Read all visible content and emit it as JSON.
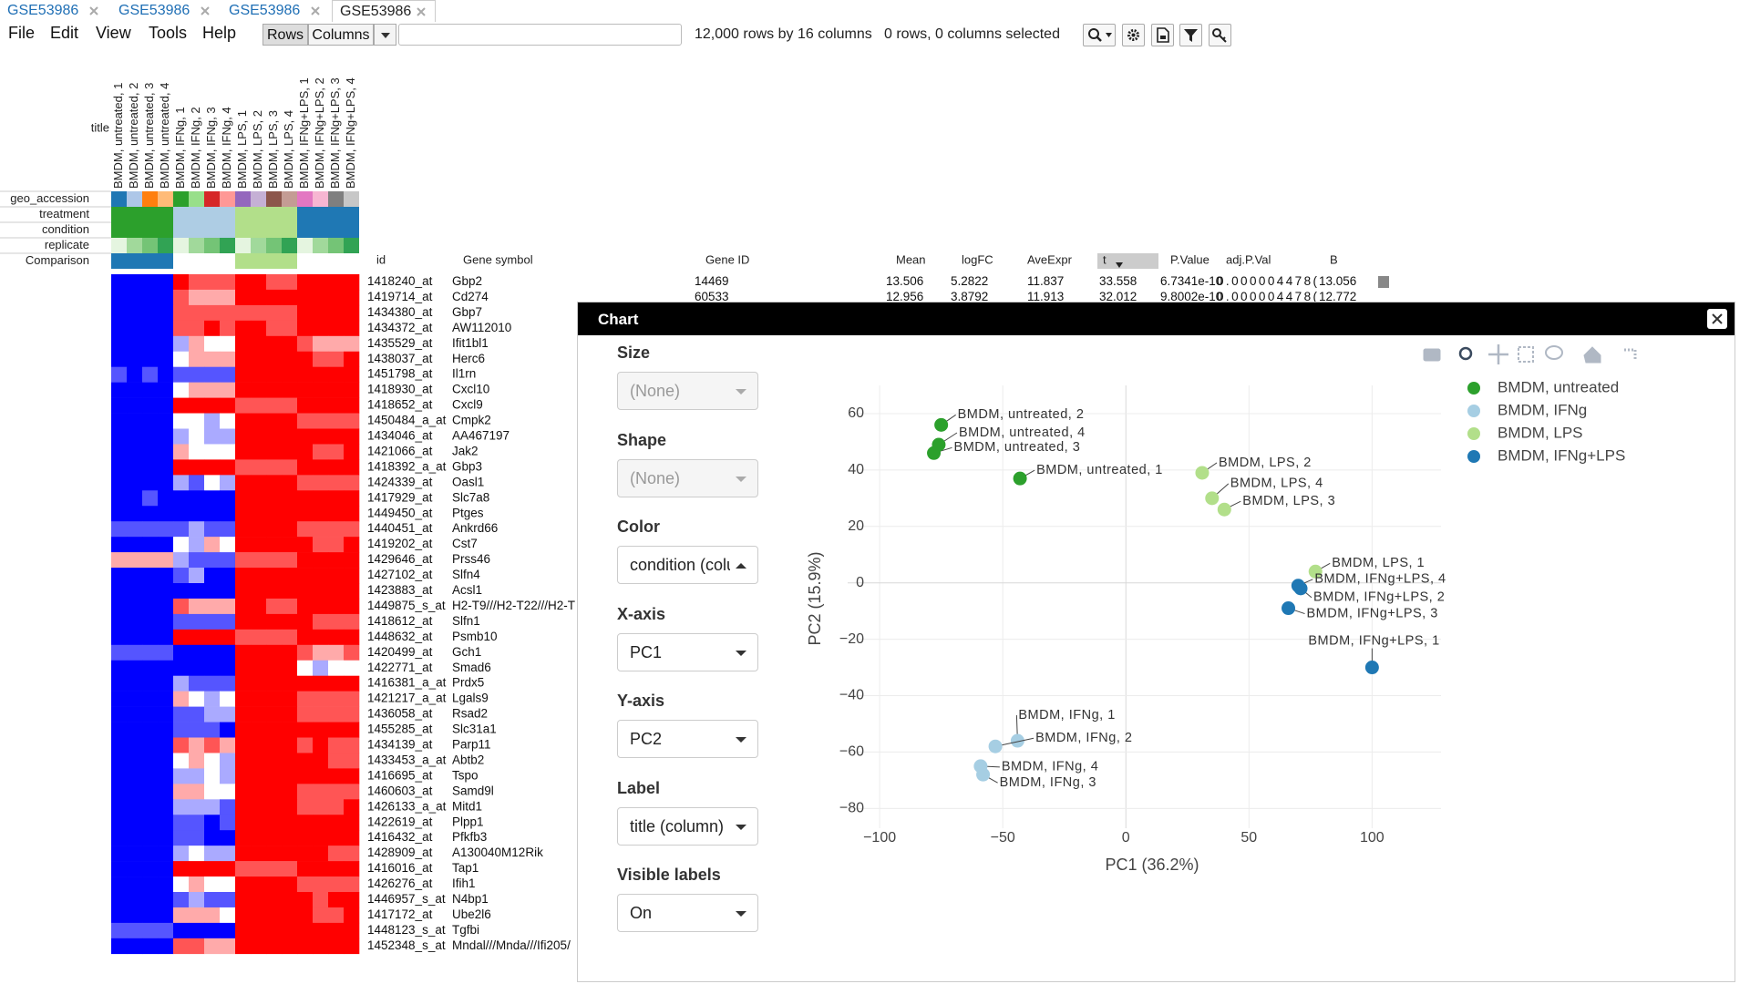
{
  "tabs": [
    "GSE53986",
    "GSE53986",
    "GSE53986",
    "GSE53986"
  ],
  "menu": [
    "File",
    "Edit",
    "View",
    "Tools",
    "Help"
  ],
  "toolbar": {
    "rows_button": "Rows",
    "columns_button": "Columns",
    "status": "12,000 rows by 16 columns",
    "selection": "0 rows, 0 columns selected"
  },
  "heatmap": {
    "title_label": "title",
    "column_titles": [
      "BMDM, untreated, 1",
      "BMDM, untreated, 2",
      "BMDM, untreated, 3",
      "BMDM, untreated, 4",
      "BMDM, IFNg, 1",
      "BMDM, IFNg, 2",
      "BMDM, IFNg, 3",
      "BMDM, IFNg, 4",
      "BMDM, LPS, 1",
      "BMDM, LPS, 2",
      "BMDM, LPS, 3",
      "BMDM, LPS, 4",
      "BMDM, IFNg+LPS, 1",
      "BMDM, IFNg+LPS, 2",
      "BMDM, IFNg+LPS, 3",
      "BMDM, IFNg+LPS, 4"
    ],
    "annotations": [
      {
        "name": "geo_accession",
        "colors": [
          "#1f77b4",
          "#aec7e8",
          "#ff7f0e",
          "#ffbb78",
          "#2ca02c",
          "#98df8a",
          "#d62728",
          "#ff9896",
          "#9467bd",
          "#c5b0d5",
          "#8c564b",
          "#c49c94",
          "#e377c2",
          "#f7b6d2",
          "#7f7f7f",
          "#c7c7c7"
        ]
      },
      {
        "name": "treatment",
        "colors": [
          "#2ca02c",
          "#2ca02c",
          "#2ca02c",
          "#2ca02c",
          "#aecde4",
          "#aecde4",
          "#aecde4",
          "#aecde4",
          "#b2df8a",
          "#b2df8a",
          "#b2df8a",
          "#b2df8a",
          "#1f78b4",
          "#1f78b4",
          "#1f78b4",
          "#1f78b4"
        ]
      },
      {
        "name": "condition",
        "colors": [
          "#2ca02c",
          "#2ca02c",
          "#2ca02c",
          "#2ca02c",
          "#aecde4",
          "#aecde4",
          "#aecde4",
          "#aecde4",
          "#b2df8a",
          "#b2df8a",
          "#b2df8a",
          "#b2df8a",
          "#1f78b4",
          "#1f78b4",
          "#1f78b4",
          "#1f78b4"
        ]
      },
      {
        "name": "replicate",
        "colors": [
          "#e5f5e0",
          "#a1d99b",
          "#74c476",
          "#31a354",
          "#e5f5e0",
          "#a1d99b",
          "#74c476",
          "#31a354",
          "#e5f5e0",
          "#a1d99b",
          "#74c476",
          "#31a354",
          "#e5f5e0",
          "#a1d99b",
          "#74c476",
          "#31a354"
        ]
      },
      {
        "name": "Comparison",
        "colors": [
          "#1f78b4",
          "#1f78b4",
          "#1f78b4",
          "#1f78b4",
          "#ffffff",
          "#ffffff",
          "#ffffff",
          "#ffffff",
          "#b2df8a",
          "#b2df8a",
          "#b2df8a",
          "#b2df8a",
          "#ffffff",
          "#ffffff",
          "#ffffff",
          "#ffffff"
        ]
      }
    ],
    "values": [
      [
        -3,
        -3,
        -3,
        -3,
        3,
        2,
        2,
        2,
        3,
        3,
        2,
        2,
        3,
        3,
        3,
        3
      ],
      [
        -3,
        -3,
        -3,
        -3,
        2,
        1,
        1,
        1,
        3,
        3,
        3,
        3,
        3,
        3,
        3,
        3
      ],
      [
        -3,
        -3,
        -3,
        -3,
        2,
        2,
        2,
        2,
        2,
        2,
        2,
        2,
        3,
        3,
        3,
        3
      ],
      [
        -3,
        -3,
        -3,
        -3,
        2,
        2,
        3,
        2,
        3,
        3,
        2,
        2,
        3,
        3,
        3,
        3
      ],
      [
        -3,
        -3,
        -3,
        -3,
        -1,
        1,
        0,
        0,
        3,
        3,
        3,
        3,
        2,
        1,
        1,
        1
      ],
      [
        -3,
        -3,
        -3,
        -3,
        0,
        1,
        1,
        1,
        3,
        3,
        3,
        3,
        3,
        2,
        2,
        3
      ],
      [
        -2,
        -3,
        -2,
        -3,
        -2,
        -2,
        -2,
        -2,
        3,
        3,
        3,
        3,
        3,
        3,
        3,
        3
      ],
      [
        -3,
        -3,
        -3,
        -3,
        0,
        1,
        1,
        1,
        3,
        3,
        3,
        3,
        3,
        3,
        3,
        3
      ],
      [
        -3,
        -3,
        -3,
        -3,
        3,
        3,
        3,
        3,
        2,
        2,
        2,
        2,
        3,
        3,
        3,
        3
      ],
      [
        -3,
        -3,
        -3,
        -3,
        0,
        0,
        -1,
        0,
        3,
        3,
        3,
        3,
        2,
        2,
        2,
        2
      ],
      [
        -3,
        -3,
        -3,
        -3,
        -1,
        0,
        -1,
        -1,
        3,
        3,
        3,
        3,
        3,
        3,
        3,
        3
      ],
      [
        -3,
        -3,
        -3,
        -3,
        1,
        0,
        0,
        0,
        3,
        3,
        3,
        3,
        3,
        2,
        2,
        3
      ],
      [
        -3,
        -3,
        -3,
        -3,
        3,
        3,
        3,
        3,
        2,
        2,
        2,
        2,
        3,
        3,
        3,
        3
      ],
      [
        -3,
        -3,
        -3,
        -3,
        -1,
        -2,
        0,
        -1,
        3,
        3,
        3,
        3,
        2,
        2,
        2,
        2
      ],
      [
        -3,
        -3,
        -2,
        -3,
        -3,
        -3,
        -3,
        -3,
        3,
        3,
        3,
        3,
        3,
        3,
        3,
        3
      ],
      [
        -3,
        -3,
        -3,
        -3,
        -3,
        -3,
        -3,
        -3,
        3,
        3,
        3,
        3,
        3,
        3,
        3,
        3
      ],
      [
        -2,
        -2,
        -2,
        -2,
        -2,
        -1,
        -2,
        -2,
        3,
        3,
        3,
        3,
        2,
        2,
        2,
        2
      ],
      [
        -3,
        -3,
        -3,
        -3,
        0,
        -1,
        1,
        0,
        3,
        3,
        3,
        3,
        3,
        2,
        2,
        3
      ],
      [
        1,
        1,
        1,
        1,
        -1,
        -2,
        -2,
        -2,
        2,
        2,
        2,
        2,
        3,
        3,
        3,
        3
      ],
      [
        -3,
        -3,
        -3,
        -3,
        -2,
        -1,
        -3,
        -3,
        3,
        3,
        3,
        3,
        3,
        3,
        3,
        3
      ],
      [
        -3,
        -3,
        -3,
        -3,
        -3,
        -3,
        -3,
        -3,
        3,
        3,
        3,
        3,
        3,
        3,
        3,
        3
      ],
      [
        -3,
        -3,
        -3,
        -3,
        2,
        1,
        1,
        1,
        3,
        3,
        2,
        2,
        3,
        3,
        3,
        3
      ],
      [
        -3,
        -3,
        -3,
        -3,
        -2,
        -2,
        -2,
        -2,
        3,
        3,
        3,
        3,
        3,
        2,
        2,
        2
      ],
      [
        -3,
        -3,
        -3,
        -3,
        3,
        3,
        3,
        3,
        2,
        2,
        2,
        2,
        3,
        3,
        3,
        3
      ],
      [
        -2,
        -2,
        -2,
        -2,
        -3,
        -3,
        -3,
        -3,
        3,
        3,
        3,
        3,
        2,
        1,
        1,
        2
      ],
      [
        -3,
        -3,
        -3,
        -3,
        -3,
        -3,
        -3,
        -3,
        3,
        3,
        3,
        3,
        0,
        -1,
        0,
        0
      ],
      [
        -3,
        -3,
        -3,
        -3,
        -1,
        -2,
        -2,
        -2,
        3,
        3,
        3,
        3,
        3,
        3,
        3,
        3
      ],
      [
        -3,
        -3,
        -3,
        -3,
        1,
        0,
        -1,
        0,
        3,
        3,
        3,
        3,
        2,
        2,
        2,
        2
      ],
      [
        -3,
        -3,
        -3,
        -3,
        -2,
        -2,
        -1,
        -1,
        3,
        3,
        3,
        3,
        2,
        2,
        2,
        2
      ],
      [
        -3,
        -3,
        -3,
        -3,
        -2,
        -2,
        -2,
        -3,
        3,
        3,
        3,
        3,
        3,
        3,
        3,
        3
      ],
      [
        -3,
        -3,
        -3,
        -3,
        2,
        1,
        2,
        1,
        3,
        3,
        3,
        3,
        2,
        3,
        2,
        2
      ],
      [
        -3,
        -3,
        -3,
        -3,
        0,
        1,
        0,
        -1,
        3,
        3,
        3,
        3,
        3,
        3,
        2,
        2
      ],
      [
        -3,
        -3,
        -3,
        -3,
        -1,
        -1,
        0,
        -1,
        3,
        3,
        3,
        3,
        3,
        3,
        3,
        3
      ],
      [
        -3,
        -3,
        -3,
        -3,
        1,
        1,
        0,
        0,
        3,
        3,
        3,
        3,
        2,
        2,
        2,
        2
      ],
      [
        -3,
        -3,
        -3,
        -3,
        -1,
        -1,
        -1,
        -2,
        3,
        3,
        3,
        3,
        2,
        2,
        2,
        3
      ],
      [
        -3,
        -3,
        -3,
        -3,
        -2,
        -2,
        -3,
        -2,
        3,
        3,
        3,
        3,
        3,
        3,
        3,
        3
      ],
      [
        -3,
        -3,
        -3,
        -3,
        -2,
        -2,
        -3,
        -3,
        3,
        3,
        3,
        3,
        3,
        3,
        3,
        3
      ],
      [
        -3,
        -3,
        -3,
        -3,
        -1,
        0,
        -1,
        -1,
        3,
        3,
        3,
        3,
        3,
        3,
        2,
        2
      ],
      [
        -3,
        -3,
        -3,
        -3,
        3,
        3,
        3,
        3,
        2,
        2,
        2,
        2,
        3,
        3,
        3,
        3
      ],
      [
        -3,
        -3,
        -3,
        -3,
        0,
        1,
        0,
        0,
        3,
        3,
        3,
        3,
        2,
        2,
        2,
        2
      ],
      [
        -3,
        -3,
        -3,
        -3,
        -2,
        -1,
        -2,
        -2,
        3,
        3,
        3,
        3,
        3,
        2,
        3,
        3
      ],
      [
        -3,
        -3,
        -3,
        -3,
        1,
        1,
        1,
        0,
        3,
        3,
        3,
        3,
        3,
        2,
        2,
        3
      ],
      [
        -2,
        -2,
        -2,
        -2,
        -3,
        -3,
        -3,
        -3,
        3,
        3,
        3,
        3,
        3,
        3,
        3,
        3
      ],
      [
        -3,
        -3,
        -3,
        -3,
        2,
        2,
        1,
        1,
        3,
        3,
        3,
        3,
        3,
        3,
        3,
        3
      ]
    ]
  },
  "table": {
    "headers": [
      "id",
      "Gene symbol",
      "Gene ID",
      "Mean",
      "logFC",
      "AveExpr",
      "t",
      "P.Value",
      "adj.P.Val",
      "B"
    ],
    "rows": [
      [
        "1418240_at",
        "Gbp2",
        "14469",
        "13.506",
        "5.2822",
        "11.837",
        "33.558",
        "6.7341e-10",
        "0.000004478(",
        "13.056"
      ],
      [
        "1419714_at",
        "Cd274",
        "60533",
        "12.956",
        "3.8792",
        "11.913",
        "32.012",
        "9.8002e-10",
        "0.000004478(",
        "12.772"
      ],
      [
        "1434380_at",
        "Gbp7"
      ],
      [
        "1434372_at",
        "AW112010"
      ],
      [
        "1435529_at",
        "Ifit1bl1"
      ],
      [
        "1438037_at",
        "Herc6"
      ],
      [
        "1451798_at",
        "Il1rn"
      ],
      [
        "1418930_at",
        "Cxcl10"
      ],
      [
        "1418652_at",
        "Cxcl9"
      ],
      [
        "1450484_a_at",
        "Cmpk2"
      ],
      [
        "1434046_at",
        "AA467197"
      ],
      [
        "1421066_at",
        "Jak2"
      ],
      [
        "1418392_a_at",
        "Gbp3"
      ],
      [
        "1424339_at",
        "Oasl1"
      ],
      [
        "1417929_at",
        "Slc7a8"
      ],
      [
        "1449450_at",
        "Ptges"
      ],
      [
        "1440451_at",
        "Ankrd66"
      ],
      [
        "1419202_at",
        "Cst7"
      ],
      [
        "1429646_at",
        "Prss46"
      ],
      [
        "1427102_at",
        "Slfn4"
      ],
      [
        "1423883_at",
        "Acsl1"
      ],
      [
        "1449875_s_at",
        "H2-T9///H2-T22///H2-T"
      ],
      [
        "1418612_at",
        "Slfn1"
      ],
      [
        "1448632_at",
        "Psmb10"
      ],
      [
        "1420499_at",
        "Gch1"
      ],
      [
        "1422771_at",
        "Smad6"
      ],
      [
        "1416381_a_at",
        "Prdx5"
      ],
      [
        "1421217_a_at",
        "Lgals9"
      ],
      [
        "1436058_at",
        "Rsad2"
      ],
      [
        "1455285_at",
        "Slc31a1"
      ],
      [
        "1434139_at",
        "Parp11"
      ],
      [
        "1433453_a_at",
        "Abtb2"
      ],
      [
        "1416695_at",
        "Tspo"
      ],
      [
        "1460603_at",
        "Samd9l"
      ],
      [
        "1426133_a_at",
        "Mitd1"
      ],
      [
        "1422619_at",
        "Plpp1"
      ],
      [
        "1416432_at",
        "Pfkfb3"
      ],
      [
        "1428909_at",
        "A130040M12Rik"
      ],
      [
        "1416016_at",
        "Tap1"
      ],
      [
        "1426276_at",
        "Ifih1"
      ],
      [
        "1446957_s_at",
        "N4bp1"
      ],
      [
        "1417172_at",
        "Ube2l6"
      ],
      [
        "1448123_s_at",
        "Tgfbi"
      ],
      [
        "1452348_s_at",
        "Mndal///Mnda///Ifi205/"
      ]
    ]
  },
  "dialog": {
    "title": "Chart",
    "controls": [
      {
        "label": "Size",
        "value": "(None)",
        "disabled": true
      },
      {
        "label": "Shape",
        "value": "(None)",
        "disabled": true
      },
      {
        "label": "Color",
        "value": "condition (column)",
        "disabled": false
      },
      {
        "label": "X-axis",
        "value": "PC1",
        "disabled": false
      },
      {
        "label": "Y-axis",
        "value": "PC2",
        "disabled": false
      },
      {
        "label": "Label",
        "value": "title (column)",
        "disabled": false
      },
      {
        "label": "Visible labels",
        "value": "On",
        "disabled": false
      }
    ]
  },
  "chart_data": {
    "type": "scatter",
    "xlabel": "PC1 (36.2%)",
    "ylabel": "PC2 (15.9%)",
    "xlim": [
      -113,
      128
    ],
    "ylim": [
      -87,
      70
    ],
    "xticks": [
      {
        "value": -100,
        "label": "−100"
      },
      {
        "value": -50,
        "label": "−50"
      },
      0,
      50,
      100
    ],
    "yticks": [
      {
        "value": -80,
        "label": "−80"
      },
      {
        "value": -60,
        "label": "−60"
      },
      {
        "value": -40,
        "label": "−40"
      },
      {
        "value": -20,
        "label": "−20"
      },
      0,
      20,
      40,
      60
    ],
    "grid": true,
    "legend": "right",
    "series": [
      {
        "name": "BMDM, untreated",
        "color": "#2ca02c",
        "x": [
          -43,
          -75,
          -78,
          -76
        ],
        "y": [
          37,
          56,
          46,
          49
        ],
        "labels": [
          "BMDM, untreated, 1",
          "BMDM, untreated, 2",
          "BMDM, untreated, 3",
          "BMDM, untreated, 4"
        ]
      },
      {
        "name": "BMDM, IFNg",
        "color": "#a6cee3",
        "x": [
          -44,
          -53,
          -58,
          -59
        ],
        "y": [
          -56,
          -58,
          -68,
          -65
        ],
        "labels": [
          "BMDM, IFNg, 1",
          "BMDM, IFNg, 2",
          "BMDM, IFNg, 3",
          "BMDM, IFNg, 4"
        ]
      },
      {
        "name": "BMDM, LPS",
        "color": "#b2df8a",
        "x": [
          77,
          31,
          40,
          35
        ],
        "y": [
          4,
          39,
          26,
          30
        ],
        "labels": [
          "BMDM, LPS, 1",
          "BMDM, LPS, 2",
          "BMDM, LPS, 3",
          "BMDM, LPS, 4"
        ]
      },
      {
        "name": "BMDM, IFNg+LPS",
        "color": "#1f78b4",
        "x": [
          100,
          71,
          66,
          70
        ],
        "y": [
          -30,
          -2,
          -9,
          -1
        ],
        "labels": [
          "BMDM, IFNg+LPS, 1",
          "BMDM, IFNg+LPS, 2",
          "BMDM, IFNg+LPS, 3",
          "BMDM, IFNg+LPS, 4"
        ]
      }
    ]
  }
}
